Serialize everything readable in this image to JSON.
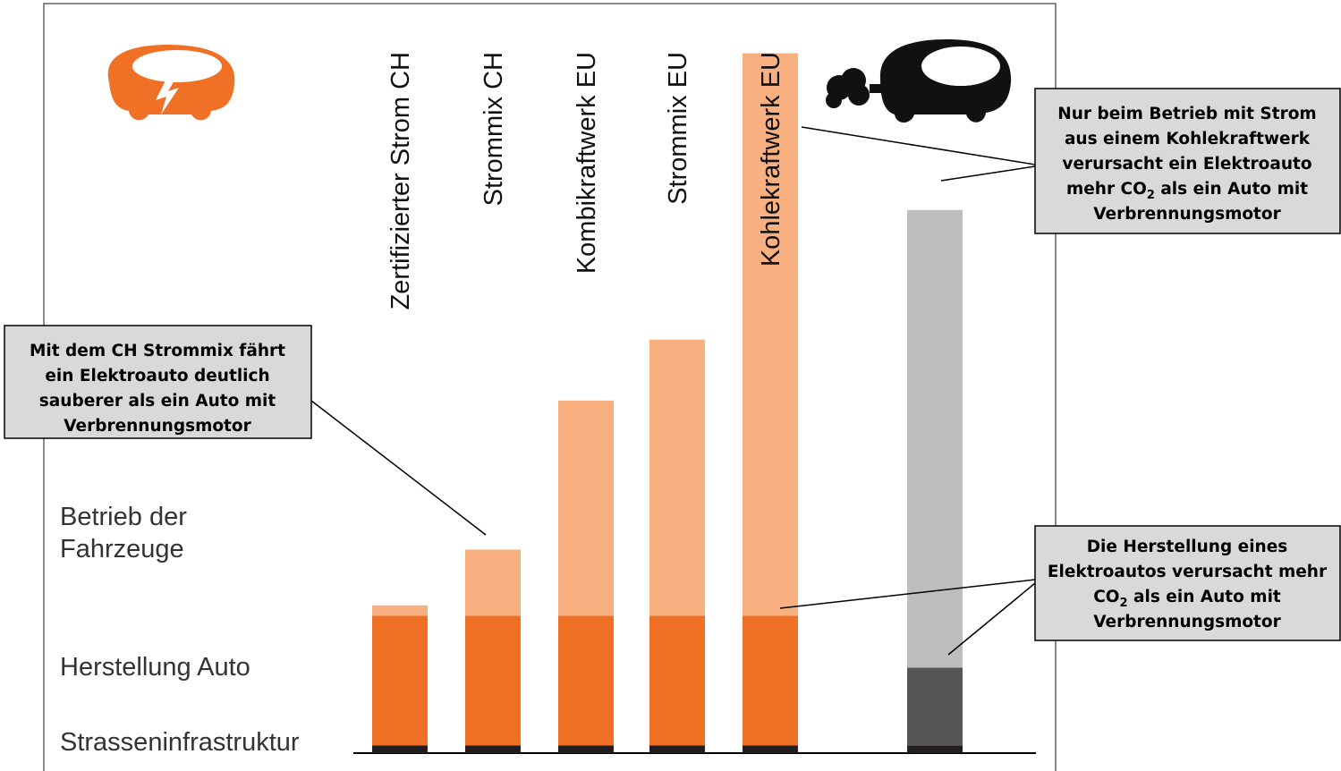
{
  "chart_data": {
    "type": "bar",
    "stacked": true,
    "layer_labels": [
      "Strasseninfrastruktur",
      "Herstellung Auto",
      "Betrieb der Fahrzeuge"
    ],
    "series": [
      {
        "key": "strasse",
        "values": [
          0.06,
          0.06,
          0.06,
          0.06,
          0.06,
          0.06
        ]
      },
      {
        "key": "herstellung",
        "values": [
          1.0,
          1.0,
          1.0,
          1.0,
          1.0,
          0.6
        ]
      },
      {
        "key": "betrieb",
        "values": [
          0.08,
          0.51,
          1.66,
          2.13,
          4.34,
          3.53
        ]
      }
    ],
    "categories": [
      "Zertifizierter Strom CH",
      "Strommix CH",
      "Kombikraftwerk EU",
      "Strommix EU",
      "Kohlekraftwerk EU",
      ""
    ],
    "ylim": [
      0,
      5.5
    ],
    "grid": false,
    "colors": {
      "electric_herstellung": "#f07126",
      "electric_betrieb": "#f8b081",
      "ice_herstellung": "#555556",
      "ice_betrieb": "#bcbdbf",
      "infrastructure": "#231f20"
    }
  },
  "callouts": {
    "ch_strommix": {
      "lines": [
        [
          {
            "t": "Mit dem CH Strommix fährt"
          }
        ],
        [
          {
            "t": "ein Elektroauto deutlich"
          }
        ],
        [
          {
            "t": "sauberer als ein Auto mit"
          }
        ],
        [
          {
            "t": "Verbrennungsmotor"
          }
        ]
      ]
    },
    "kohle": {
      "lines": [
        [
          {
            "t": "Nur beim Betrieb mit Strom"
          }
        ],
        [
          {
            "t": "aus einem Kohlekraftwerk"
          }
        ],
        [
          {
            "t": "verursacht ein Elektroauto"
          }
        ],
        [
          {
            "t": "mehr CO"
          },
          {
            "t": "2",
            "sub": true
          },
          {
            "t": " als ein Auto mit"
          }
        ],
        [
          {
            "t": "Verbrennungsmotor"
          }
        ]
      ]
    },
    "herstellung": {
      "lines": [
        [
          {
            "t": "Die Herstellung eines"
          }
        ],
        [
          {
            "t": "Elektroautos verursacht mehr"
          }
        ],
        [
          {
            "t": "CO"
          },
          {
            "t": "2",
            "sub": true
          },
          {
            "t": " als ein Auto mit"
          }
        ],
        [
          {
            "t": "Verbrennungsmotor"
          }
        ]
      ]
    }
  },
  "icons": {
    "electric_car": "electric-car-icon",
    "combustion_car": "combustion-car-icon"
  }
}
